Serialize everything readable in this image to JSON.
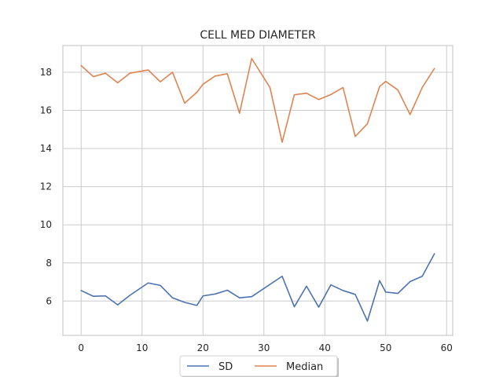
{
  "chart_data": {
    "type": "line",
    "title": "CELL MED DIAMETER",
    "xlabel": "",
    "ylabel": "",
    "xlim": [
      -3,
      61
    ],
    "ylim": [
      4.2,
      19.4
    ],
    "xticks": [
      0,
      10,
      20,
      30,
      40,
      50,
      60
    ],
    "yticks": [
      6,
      8,
      10,
      12,
      14,
      16,
      18
    ],
    "grid": true,
    "legend_position": "bottom-center",
    "series": [
      {
        "name": "SD",
        "color": "#4c72b0",
        "x": [
          0,
          2,
          4,
          6,
          8,
          11,
          13,
          15,
          17,
          19,
          20,
          22,
          24,
          26,
          28,
          33,
          35,
          37,
          39,
          41,
          43,
          45,
          47,
          49,
          50,
          52,
          54,
          56,
          58
        ],
        "y": [
          6.55,
          6.25,
          6.27,
          5.8,
          6.3,
          6.95,
          6.82,
          6.17,
          5.93,
          5.77,
          6.27,
          6.37,
          6.57,
          6.17,
          6.23,
          7.3,
          5.7,
          6.78,
          5.68,
          6.85,
          6.55,
          6.35,
          4.95,
          7.07,
          6.47,
          6.4,
          7.02,
          7.3,
          8.48
        ]
      },
      {
        "name": "Median",
        "color": "#dd8452",
        "x": [
          0,
          2,
          4,
          6,
          8,
          11,
          13,
          15,
          17,
          19,
          20,
          22,
          24,
          26,
          28,
          31,
          33,
          35,
          37,
          39,
          41,
          43,
          45,
          47,
          49,
          50,
          52,
          54,
          56,
          58
        ],
        "y": [
          18.35,
          17.77,
          17.95,
          17.45,
          17.95,
          18.12,
          17.5,
          18.0,
          16.38,
          16.95,
          17.37,
          17.8,
          17.92,
          15.85,
          18.72,
          17.2,
          14.33,
          16.82,
          16.9,
          16.57,
          16.83,
          17.2,
          14.63,
          15.3,
          17.25,
          17.52,
          17.07,
          15.78,
          17.2,
          18.2
        ]
      }
    ]
  }
}
